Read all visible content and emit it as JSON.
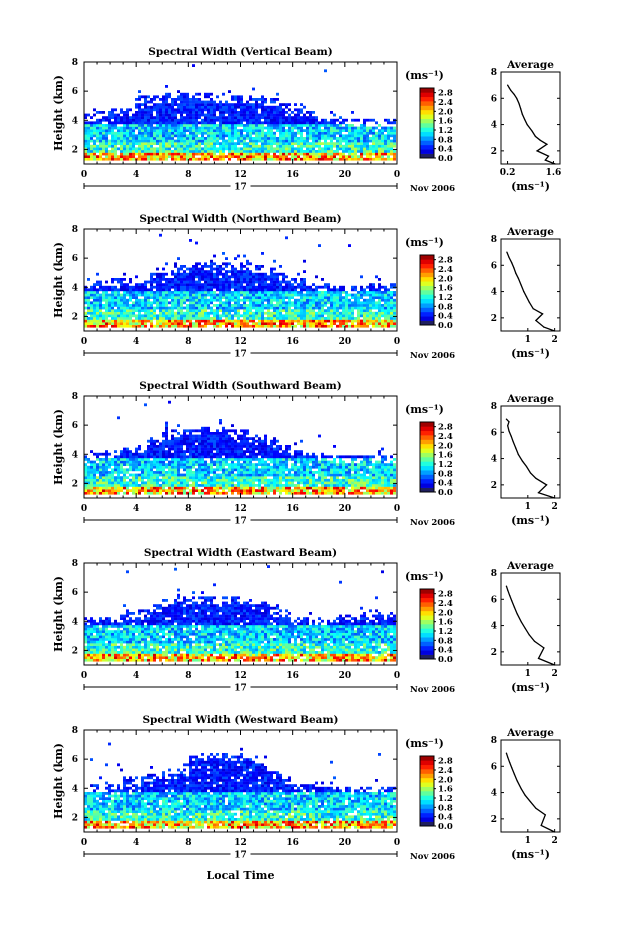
{
  "figure": {
    "x_axis_label": "Local Time",
    "date_label": "Nov 2006",
    "day_label": "17"
  },
  "chart_data": [
    {
      "type": "heatmap",
      "panel": "time-height",
      "title": "Spectral Width (Vertical Beam)",
      "xlabel": "",
      "ylabel": "Height (km)",
      "xlim": [
        0,
        24
      ],
      "ylim": [
        1,
        8
      ],
      "x_ticks": [
        "0",
        "4",
        "8",
        "12",
        "16",
        "20",
        "0"
      ],
      "y_ticks": [
        "2",
        "4",
        "6",
        "8"
      ],
      "colorbar": {
        "unit": "(ms⁻¹)",
        "ticks": [
          "0.0",
          "0.4",
          "0.8",
          "1.2",
          "1.6",
          "2.0",
          "2.4",
          "2.8"
        ],
        "range": [
          0,
          3.0
        ]
      },
      "echo_top_km": [
        4.3,
        4.5,
        4.6,
        4.7,
        5.5,
        5.6,
        5.7,
        5.8,
        5.8,
        5.7,
        5.6,
        5.6,
        5.5,
        5.5,
        5.4,
        5.0,
        4.8,
        4.4,
        4.0,
        3.9,
        3.9,
        3.9,
        3.9,
        3.9
      ]
    },
    {
      "type": "line",
      "panel": "average",
      "title": "Average",
      "xlabel": "(ms⁻¹)",
      "ylabel": "",
      "xlim": [
        0,
        1.8
      ],
      "ylim": [
        1,
        8
      ],
      "x_ticks": [
        "0.2",
        "1.6"
      ],
      "y_ticks": [
        "2",
        "4",
        "6",
        "8"
      ],
      "x": [
        1.65,
        1.35,
        1.45,
        1.1,
        1.4,
        1.2,
        1.05,
        0.95,
        0.8,
        0.72,
        0.65,
        0.6,
        0.55,
        0.48,
        0.4,
        0.3,
        0.25,
        0.2
      ],
      "y": [
        1.0,
        1.3,
        1.6,
        2.0,
        2.5,
        2.8,
        3.1,
        3.5,
        4.0,
        4.4,
        4.8,
        5.2,
        5.6,
        6.0,
        6.3,
        6.6,
        6.8,
        7.0
      ]
    },
    {
      "type": "heatmap",
      "panel": "time-height",
      "title": "Spectral Width (Northward Beam)",
      "xlabel": "",
      "ylabel": "Height (km)",
      "xlim": [
        0,
        24
      ],
      "ylim": [
        1,
        8
      ],
      "x_ticks": [
        "0",
        "4",
        "8",
        "12",
        "16",
        "20",
        "0"
      ],
      "y_ticks": [
        "2",
        "4",
        "6",
        "8"
      ],
      "colorbar": {
        "unit": "(ms⁻¹)",
        "ticks": [
          "0.0",
          "0.4",
          "0.8",
          "1.2",
          "1.6",
          "2.0",
          "2.4",
          "2.8"
        ],
        "range": [
          0,
          3.0
        ]
      },
      "echo_top_km": [
        4.2,
        4.3,
        4.4,
        4.5,
        4.6,
        4.8,
        5.0,
        5.4,
        5.6,
        5.6,
        5.6,
        5.6,
        5.5,
        5.4,
        5.3,
        4.8,
        4.4,
        4.2,
        4.0,
        3.9,
        3.9,
        4.0,
        4.1,
        4.1
      ]
    },
    {
      "type": "line",
      "panel": "average",
      "title": "Average",
      "xlabel": "(ms⁻¹)",
      "ylabel": "",
      "xlim": [
        0,
        2.2
      ],
      "ylim": [
        1,
        8
      ],
      "x_ticks": [
        "1",
        "2"
      ],
      "y_ticks": [
        "2",
        "4",
        "6",
        "8"
      ],
      "x": [
        2.0,
        1.6,
        1.3,
        1.55,
        1.2,
        1.05,
        0.95,
        0.85,
        0.75,
        0.65,
        0.55,
        0.48,
        0.4,
        0.3,
        0.22
      ],
      "y": [
        1.0,
        1.3,
        1.8,
        2.3,
        2.7,
        3.2,
        3.6,
        4.0,
        4.5,
        5.0,
        5.4,
        5.8,
        6.2,
        6.6,
        7.0
      ]
    },
    {
      "type": "heatmap",
      "panel": "time-height",
      "title": "Spectral Width (Southward Beam)",
      "xlabel": "",
      "ylabel": "Height (km)",
      "xlim": [
        0,
        24
      ],
      "ylim": [
        1,
        8
      ],
      "x_ticks": [
        "0",
        "4",
        "8",
        "12",
        "16",
        "20",
        "0"
      ],
      "y_ticks": [
        "2",
        "4",
        "6",
        "8"
      ],
      "colorbar": {
        "unit": "(ms⁻¹)",
        "ticks": [
          "0.0",
          "0.4",
          "0.8",
          "1.2",
          "1.6",
          "2.0",
          "2.4",
          "2.8"
        ],
        "range": [
          0,
          3.0
        ]
      },
      "echo_top_km": [
        3.9,
        4.0,
        4.1,
        4.3,
        4.5,
        5.0,
        5.4,
        5.6,
        5.7,
        5.8,
        5.8,
        5.6,
        5.5,
        5.2,
        5.0,
        4.5,
        4.2,
        4.0,
        3.9,
        3.8,
        3.8,
        3.8,
        3.8,
        3.8
      ]
    },
    {
      "type": "line",
      "panel": "average",
      "title": "Average",
      "xlabel": "(ms⁻¹)",
      "ylabel": "",
      "xlim": [
        0,
        2.2
      ],
      "ylim": [
        1,
        8
      ],
      "x_ticks": [
        "1",
        "2"
      ],
      "y_ticks": [
        "2",
        "4",
        "6",
        "8"
      ],
      "x": [
        2.0,
        1.4,
        1.7,
        1.3,
        1.1,
        0.95,
        0.8,
        0.65,
        0.55,
        0.45,
        0.38,
        0.3,
        0.25,
        0.3,
        0.2
      ],
      "y": [
        1.0,
        1.4,
        2.0,
        2.5,
        2.9,
        3.4,
        3.8,
        4.3,
        4.8,
        5.3,
        5.7,
        6.1,
        6.5,
        6.8,
        7.0
      ]
    },
    {
      "type": "heatmap",
      "panel": "time-height",
      "title": "Spectral Width (Eastward Beam)",
      "xlabel": "",
      "ylabel": "Height (km)",
      "xlim": [
        0,
        24
      ],
      "ylim": [
        1,
        8
      ],
      "x_ticks": [
        "0",
        "4",
        "8",
        "12",
        "16",
        "20",
        "0"
      ],
      "y_ticks": [
        "2",
        "4",
        "6",
        "8"
      ],
      "colorbar": {
        "unit": "(ms⁻¹)",
        "ticks": [
          "0.0",
          "0.4",
          "0.8",
          "1.2",
          "1.6",
          "2.0",
          "2.4",
          "2.8"
        ],
        "range": [
          0,
          3.0
        ]
      },
      "echo_top_km": [
        4.1,
        4.2,
        4.3,
        4.5,
        4.7,
        5.0,
        5.3,
        5.5,
        5.6,
        5.6,
        5.6,
        5.5,
        5.4,
        5.2,
        5.0,
        4.6,
        4.2,
        4.1,
        4.1,
        4.2,
        4.3,
        4.4,
        4.5,
        4.5
      ]
    },
    {
      "type": "line",
      "panel": "average",
      "title": "Average",
      "xlabel": "(ms⁻¹)",
      "ylabel": "",
      "xlim": [
        0,
        2.2
      ],
      "ylim": [
        1,
        8
      ],
      "x_ticks": [
        "1",
        "2"
      ],
      "y_ticks": [
        "2",
        "4",
        "6",
        "8"
      ],
      "x": [
        2.0,
        1.4,
        1.6,
        1.25,
        1.05,
        0.9,
        0.75,
        0.6,
        0.5,
        0.4,
        0.32,
        0.25,
        0.2
      ],
      "y": [
        1.0,
        1.5,
        2.3,
        2.8,
        3.3,
        3.8,
        4.3,
        4.9,
        5.4,
        5.9,
        6.3,
        6.7,
        7.0
      ]
    },
    {
      "type": "heatmap",
      "panel": "time-height",
      "title": "Spectral Width (Westward Beam)",
      "xlabel": "Local Time",
      "ylabel": "Height (km)",
      "xlim": [
        0,
        24
      ],
      "ylim": [
        1,
        8
      ],
      "x_ticks": [
        "0",
        "4",
        "8",
        "12",
        "16",
        "20",
        "0"
      ],
      "y_ticks": [
        "2",
        "4",
        "6",
        "8"
      ],
      "colorbar": {
        "unit": "(ms⁻¹)",
        "ticks": [
          "0.0",
          "0.4",
          "0.8",
          "1.2",
          "1.6",
          "2.0",
          "2.4",
          "2.8"
        ],
        "range": [
          0,
          3.0
        ]
      },
      "echo_top_km": [
        4.0,
        4.1,
        4.2,
        4.4,
        4.6,
        4.8,
        5.0,
        5.2,
        6.1,
        6.2,
        6.2,
        6.1,
        6.0,
        5.8,
        5.0,
        4.6,
        4.3,
        4.1,
        4.0,
        4.0,
        4.0,
        4.0,
        4.0,
        4.0
      ]
    },
    {
      "type": "line",
      "panel": "average",
      "title": "Average",
      "xlabel": "(ms⁻¹)",
      "ylabel": "",
      "xlim": [
        0,
        2.2
      ],
      "ylim": [
        1,
        8
      ],
      "x_ticks": [
        "1",
        "2"
      ],
      "y_ticks": [
        "2",
        "4",
        "6",
        "8"
      ],
      "x": [
        2.0,
        1.5,
        1.65,
        1.3,
        1.1,
        0.9,
        0.75,
        0.6,
        0.5,
        0.4,
        0.32,
        0.25,
        0.2
      ],
      "y": [
        1.0,
        1.5,
        2.3,
        2.8,
        3.3,
        3.8,
        4.3,
        4.9,
        5.4,
        5.9,
        6.3,
        6.7,
        7.0
      ]
    }
  ]
}
